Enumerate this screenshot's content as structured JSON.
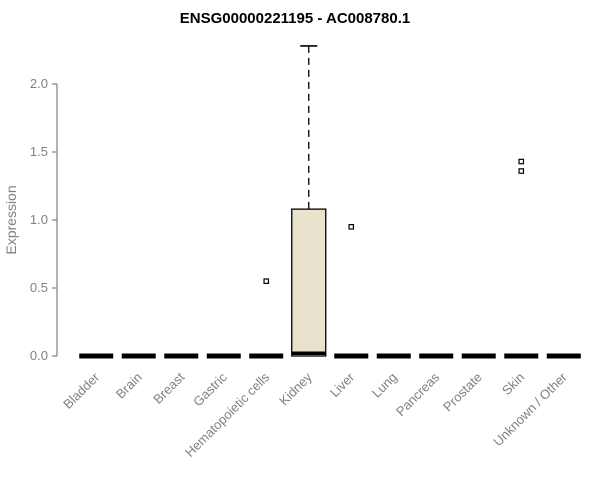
{
  "chart_data": {
    "type": "boxplot",
    "title": "ENSG00000221195 - AC008780.1",
    "ylabel": "Expression",
    "ylim": [
      0,
      2.3
    ],
    "yticks": [
      0.0,
      0.5,
      1.0,
      1.5,
      2.0
    ],
    "categories": [
      "Bladder",
      "Brain",
      "Breast",
      "Gastric",
      "Hematopoietic cells",
      "Kidney",
      "Liver",
      "Lung",
      "Pancreas",
      "Prostate",
      "Skin",
      "Unknown / Other"
    ],
    "boxes": [
      {
        "category": "Bladder",
        "min": 0,
        "q1": 0,
        "median": 0,
        "q3": 0,
        "max": 0,
        "outliers": []
      },
      {
        "category": "Brain",
        "min": 0,
        "q1": 0,
        "median": 0,
        "q3": 0,
        "max": 0,
        "outliers": []
      },
      {
        "category": "Breast",
        "min": 0,
        "q1": 0,
        "median": 0,
        "q3": 0,
        "max": 0,
        "outliers": []
      },
      {
        "category": "Gastric",
        "min": 0,
        "q1": 0,
        "median": 0,
        "q3": 0,
        "max": 0,
        "outliers": []
      },
      {
        "category": "Hematopoietic cells",
        "min": 0,
        "q1": 0,
        "median": 0,
        "q3": 0,
        "max": 0,
        "outliers": [
          0.55
        ]
      },
      {
        "category": "Kidney",
        "min": 0,
        "q1": 0.0,
        "median": 0.02,
        "q3": 1.08,
        "max": 2.28,
        "outliers": []
      },
      {
        "category": "Liver",
        "min": 0,
        "q1": 0,
        "median": 0,
        "q3": 0,
        "max": 0,
        "outliers": [
          0.95
        ]
      },
      {
        "category": "Lung",
        "min": 0,
        "q1": 0,
        "median": 0,
        "q3": 0,
        "max": 0,
        "outliers": []
      },
      {
        "category": "Pancreas",
        "min": 0,
        "q1": 0,
        "median": 0,
        "q3": 0,
        "max": 0,
        "outliers": []
      },
      {
        "category": "Prostate",
        "min": 0,
        "q1": 0,
        "median": 0,
        "q3": 0,
        "max": 0,
        "outliers": []
      },
      {
        "category": "Skin",
        "min": 0,
        "q1": 0,
        "median": 0,
        "q3": 0,
        "max": 0,
        "outliers": [
          1.36,
          1.43
        ]
      },
      {
        "category": "Unknown / Other",
        "min": 0,
        "q1": 0,
        "median": 0,
        "q3": 0,
        "max": 0,
        "outliers": []
      }
    ],
    "box_fill": "#e9e3cd",
    "box_stroke": "#000000",
    "axis_color": "#808080",
    "grid": "off",
    "legend": "none"
  }
}
